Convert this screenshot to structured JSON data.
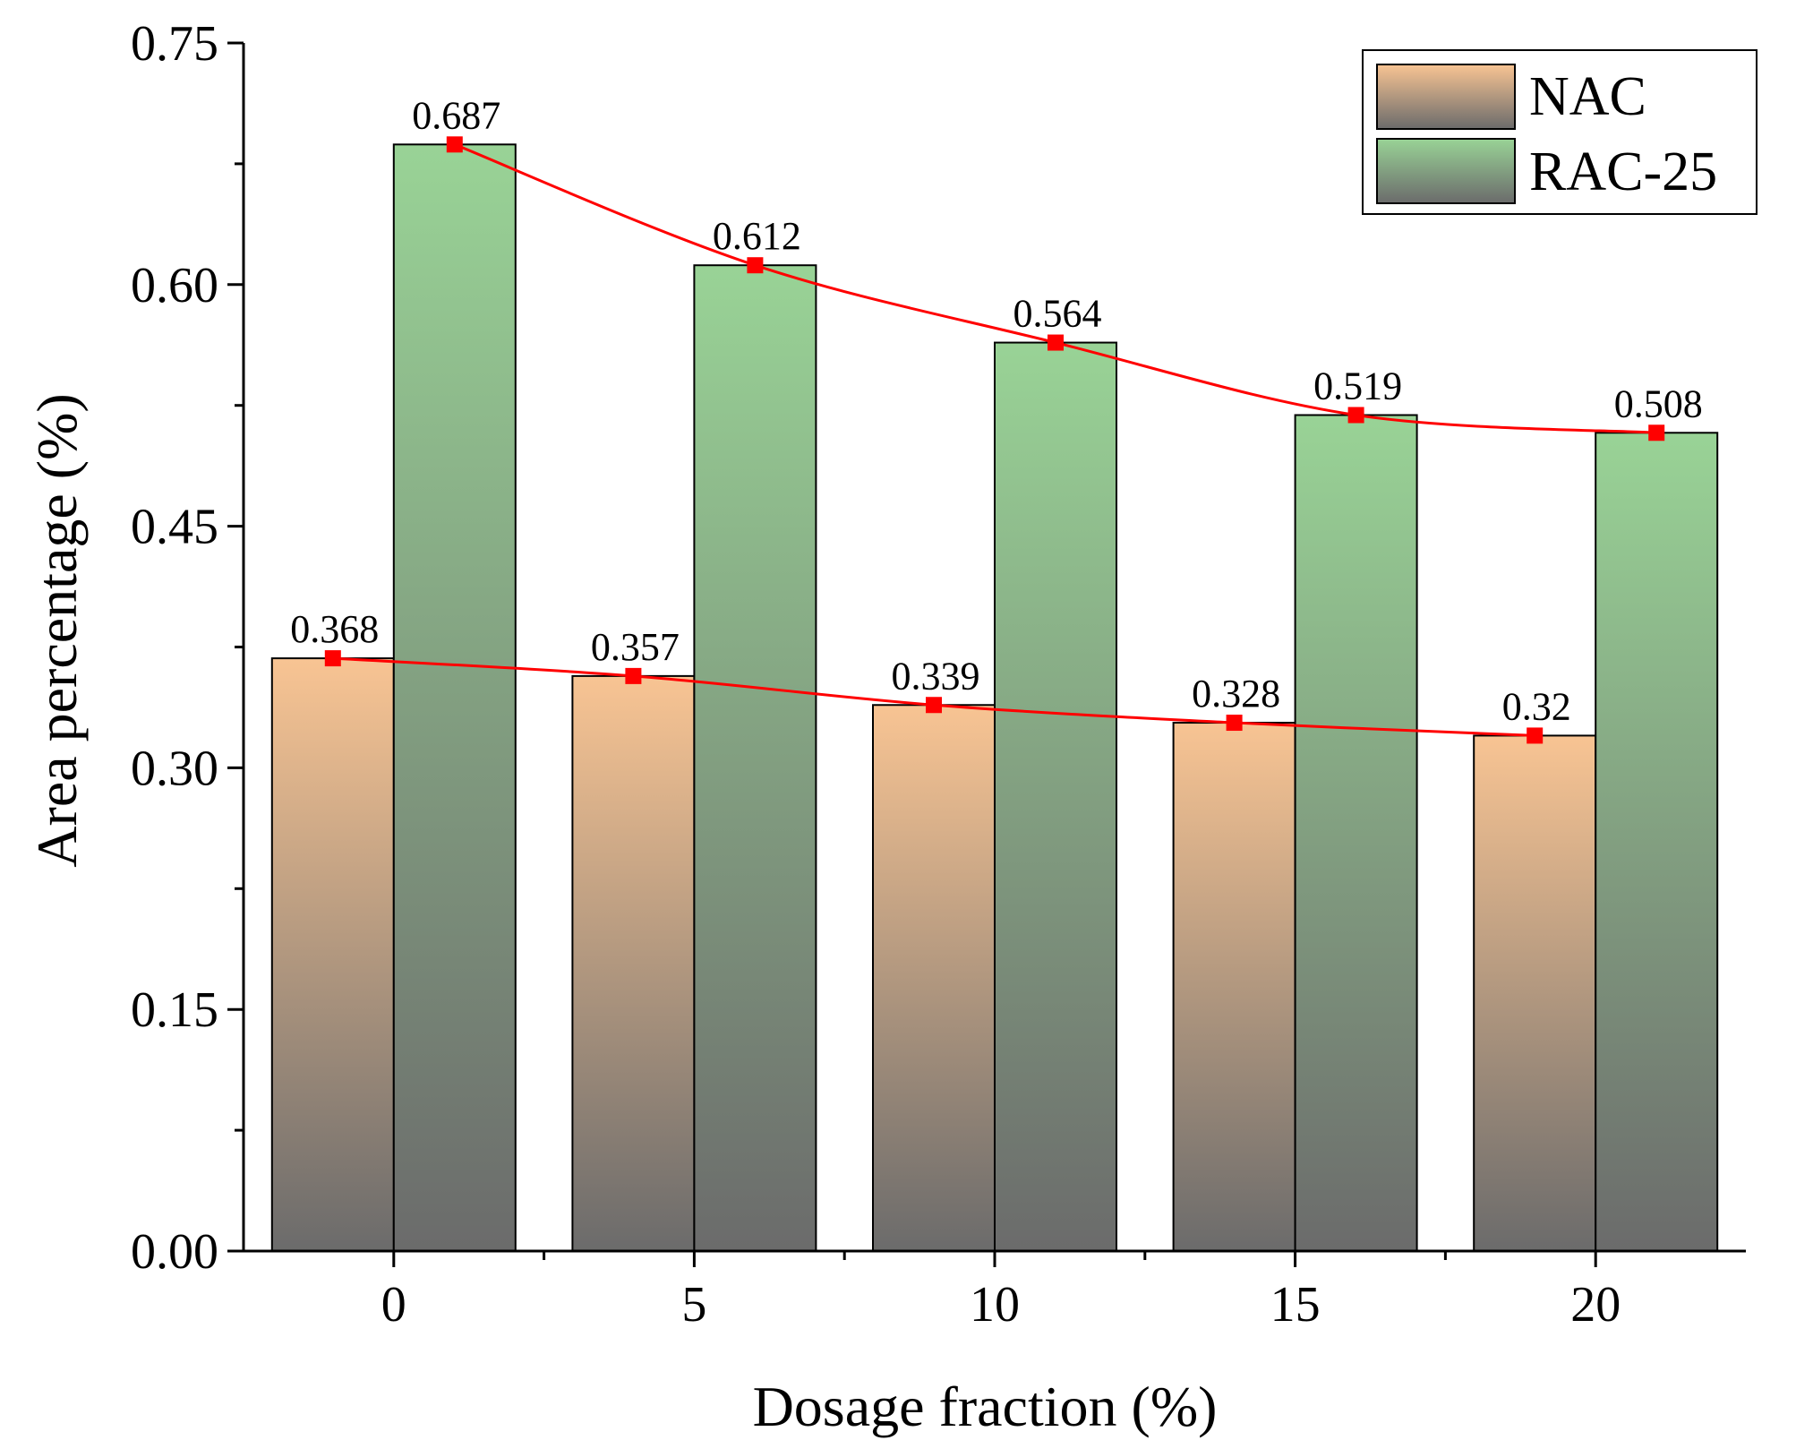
{
  "chart_data": {
    "type": "bar",
    "title": "",
    "xlabel": "Dosage fraction (%)",
    "ylabel": "Area percentage (%)",
    "categories": [
      "0",
      "5",
      "10",
      "15",
      "20"
    ],
    "series": [
      {
        "name": "NAC",
        "values": [
          0.368,
          0.357,
          0.339,
          0.328,
          0.32
        ],
        "labels": [
          "0.368",
          "0.357",
          "0.339",
          "0.328",
          "0.32"
        ],
        "color_top": "#f8c493",
        "color_bottom": "#6b6b6b"
      },
      {
        "name": "RAC-25",
        "values": [
          0.687,
          0.612,
          0.564,
          0.519,
          0.508
        ],
        "labels": [
          "0.687",
          "0.612",
          "0.564",
          "0.519",
          "0.508"
        ],
        "color_top": "#99d396",
        "color_bottom": "#6b6b6b"
      }
    ],
    "trend_line_color": "#ff0000",
    "ylim": [
      0,
      0.75
    ],
    "yticks": [
      "0.00",
      "0.15",
      "0.30",
      "0.45",
      "0.60",
      "0.75"
    ],
    "grid": false,
    "legend_position": "top-right"
  }
}
